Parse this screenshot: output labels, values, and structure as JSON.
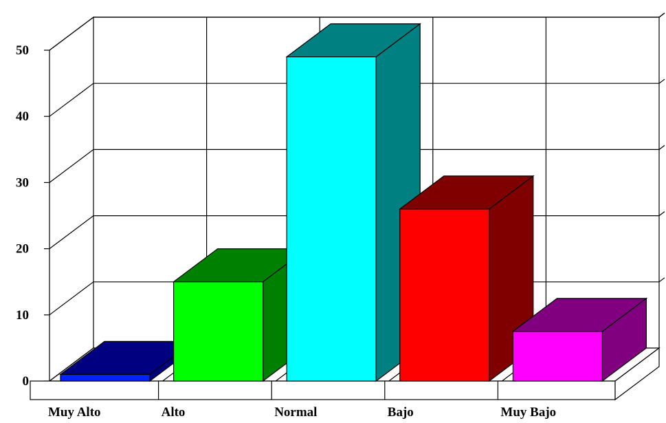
{
  "chart_data": {
    "type": "bar",
    "title": "",
    "xlabel": "",
    "ylabel": "",
    "categories": [
      "Muy Alto",
      "Alto",
      "Normal",
      "Bajo",
      "Muy Bajo"
    ],
    "values": [
      1,
      15,
      49,
      26,
      7.5
    ],
    "ylim": [
      0,
      50
    ],
    "yticks": [
      0,
      10,
      20,
      30,
      40,
      50
    ],
    "grid": true,
    "three_d": true,
    "legend": "none",
    "colors": {
      "front": [
        "#0022ff",
        "#00ff00",
        "#00ffff",
        "#ff0000",
        "#ff00ff"
      ],
      "dark": [
        "#000080",
        "#008000",
        "#008080",
        "#800000",
        "#800080"
      ]
    }
  }
}
